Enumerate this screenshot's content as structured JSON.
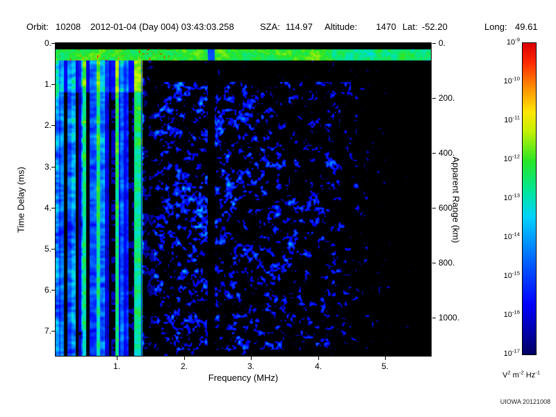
{
  "header": {
    "orbit_label": "Orbit:",
    "orbit_value": "10208",
    "datetime": "2012-01-04 (Day 004) 03:43:03.258",
    "sza_label": "SZA:",
    "sza_value": "114.97",
    "altitude_label": "Altitude:",
    "altitude_value": "1470",
    "lat_label": "Lat:",
    "lat_value": "-52.20",
    "long_label": "Long:",
    "long_value": "49.61"
  },
  "credit": "UIOWA 20121008",
  "chart_data": {
    "type": "heatmap",
    "description": "Radar sounder ionogram: log-scaled received spectral density versus frequency (MHz) and time delay (ms). Bright green/cyan horizontal band near zero delay with a few yellow/red hot spots below 2 MHz, strong full-height vertical striping below ~1.4 MHz, diffuse dark-blue speckle at mid frequencies, a dark vertical gap near 2.4 MHz, and mostly black beyond ~4.3 MHz and below ~7.5 ms.",
    "xlabel": "Frequency (MHz)",
    "ylabel_left": "Time Delay (ms)",
    "ylabel_right": "Apparent Range (km)",
    "x_range_mhz": [
      0.09,
      5.68
    ],
    "y_range_ms": [
      0.0,
      7.6
    ],
    "km_per_ms": 150,
    "x_ticks": [
      {
        "value": 1,
        "label": "1."
      },
      {
        "value": 2,
        "label": "2."
      },
      {
        "value": 3,
        "label": "3."
      },
      {
        "value": 4,
        "label": "4."
      },
      {
        "value": 5,
        "label": "5."
      }
    ],
    "y_ticks_left": [
      {
        "value": 0,
        "label": "0."
      },
      {
        "value": 1,
        "label": "1."
      },
      {
        "value": 2,
        "label": "2."
      },
      {
        "value": 3,
        "label": "3."
      },
      {
        "value": 4,
        "label": "4."
      },
      {
        "value": 5,
        "label": "5."
      },
      {
        "value": 6,
        "label": "6."
      },
      {
        "value": 7,
        "label": "7."
      }
    ],
    "y_ticks_right_km": [
      {
        "value": 0,
        "label": "0."
      },
      {
        "value": 200,
        "label": "200."
      },
      {
        "value": 400,
        "label": "400."
      },
      {
        "value": 600,
        "label": "600."
      },
      {
        "value": 800,
        "label": "800."
      },
      {
        "value": 1000,
        "label": "1000."
      }
    ],
    "colorbar": {
      "scale": "log10",
      "tick_base": "10",
      "tick_exponents": [
        -9,
        -10,
        -11,
        -12,
        -13,
        -14,
        -15,
        -16,
        -17
      ],
      "unit_parts": [
        [
          "V",
          "2"
        ],
        [
          "m",
          "-2"
        ],
        [
          "Hz",
          "-1"
        ]
      ],
      "stops": [
        {
          "v": 0.0,
          "c": "#000064"
        },
        {
          "v": 0.16,
          "c": "#0000ff"
        },
        {
          "v": 0.3,
          "c": "#0064ff"
        },
        {
          "v": 0.44,
          "c": "#00d2ff"
        },
        {
          "v": 0.52,
          "c": "#00e6a0"
        },
        {
          "v": 0.62,
          "c": "#28e628"
        },
        {
          "v": 0.72,
          "c": "#c8f000"
        },
        {
          "v": 0.78,
          "c": "#ffe600"
        },
        {
          "v": 0.86,
          "c": "#ff8c00"
        },
        {
          "v": 0.94,
          "c": "#ff2800"
        },
        {
          "v": 1.0,
          "c": "#dc0000"
        }
      ]
    },
    "features": {
      "seed": 20121008,
      "top_band_ms": [
        0.16,
        0.42
      ],
      "stripe_region_max_mhz": 1.38,
      "stripe_bright_mhz": [
        1.26,
        1.36
      ],
      "stripe_dark_gap_mhz": [
        1.4,
        1.56
      ],
      "dark_gap_mhz": [
        2.36,
        2.46
      ],
      "quiet_under_band_ms": 0.95,
      "quiet_under_band_min_mhz": 1.55,
      "sparse_right_min_mhz": 4.25,
      "bottom_quiet_ms": 7.45
    }
  }
}
